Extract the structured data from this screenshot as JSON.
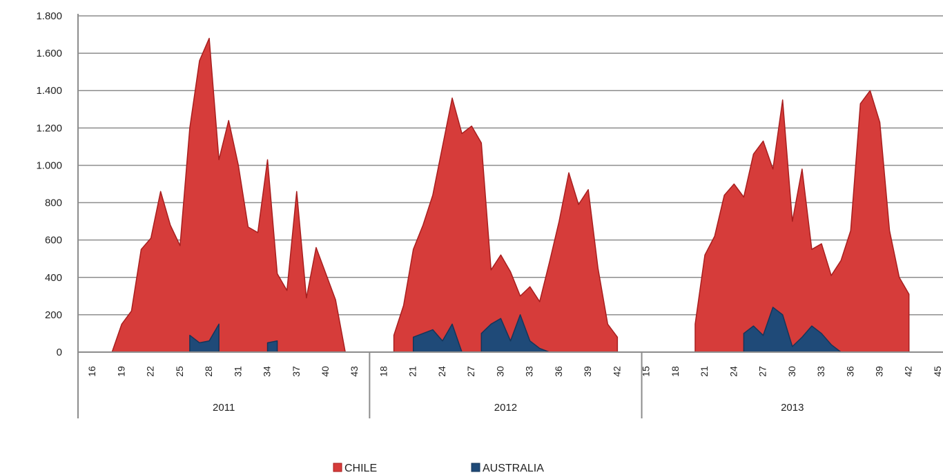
{
  "chart_data": {
    "type": "area",
    "categories": [
      null,
      "16",
      null,
      null,
      "19",
      null,
      null,
      "22",
      null,
      null,
      "25",
      null,
      null,
      "28",
      null,
      null,
      "31",
      null,
      null,
      "34",
      null,
      null,
      "37",
      null,
      null,
      "40",
      null,
      null,
      "43",
      null,
      null,
      "18",
      null,
      null,
      "21",
      null,
      null,
      "24",
      null,
      null,
      "27",
      null,
      null,
      "30",
      null,
      null,
      "33",
      null,
      null,
      "36",
      null,
      null,
      "39",
      null,
      null,
      "42",
      null,
      null,
      "15",
      null,
      null,
      "18",
      null,
      null,
      "21",
      null,
      null,
      "24",
      null,
      null,
      "27",
      null,
      null,
      "30",
      null,
      null,
      "33",
      null,
      null,
      "36",
      null,
      null,
      "39",
      null,
      null,
      "42",
      null,
      null,
      "45"
    ],
    "x_groups": [
      {
        "label": "2011",
        "size": 30
      },
      {
        "label": "2012",
        "size": 28
      },
      {
        "label": "2013",
        "size": 31
      }
    ],
    "series": [
      {
        "name": "CHILE",
        "color": "#d63c3a",
        "values": [
          null,
          null,
          null,
          0,
          150,
          220,
          550,
          610,
          860,
          680,
          570,
          1200,
          1560,
          1680,
          1030,
          1240,
          1000,
          670,
          640,
          1030,
          420,
          330,
          860,
          290,
          560,
          420,
          280,
          0,
          null,
          null,
          null,
          null,
          90,
          250,
          550,
          680,
          840,
          1100,
          1360,
          1170,
          1210,
          1120,
          440,
          520,
          430,
          300,
          350,
          270,
          480,
          700,
          960,
          790,
          870,
          450,
          150,
          80,
          null,
          null,
          null,
          null,
          null,
          null,
          null,
          150,
          520,
          620,
          840,
          900,
          830,
          1060,
          1130,
          980,
          1350,
          700,
          980,
          550,
          580,
          410,
          490,
          650,
          1330,
          1400,
          1230,
          650,
          400,
          310,
          null,
          null,
          null
        ]
      },
      {
        "name": "AUSTRALIA",
        "color": "#1f4a78",
        "values": [
          null,
          null,
          null,
          null,
          null,
          null,
          null,
          null,
          null,
          null,
          null,
          90,
          50,
          60,
          150,
          null,
          null,
          null,
          null,
          50,
          60,
          null,
          null,
          null,
          null,
          null,
          null,
          null,
          null,
          null,
          null,
          null,
          null,
          null,
          80,
          100,
          120,
          60,
          150,
          0,
          null,
          100,
          150,
          180,
          60,
          200,
          60,
          20,
          0,
          null,
          null,
          null,
          null,
          null,
          null,
          null,
          null,
          null,
          null,
          null,
          null,
          null,
          null,
          null,
          null,
          null,
          null,
          null,
          100,
          140,
          90,
          240,
          200,
          30,
          80,
          140,
          100,
          40,
          0,
          null,
          null,
          null,
          null,
          null,
          null,
          null,
          null,
          null,
          null
        ]
      }
    ],
    "ylim": [
      0,
      1800
    ],
    "yticks": [
      0,
      200,
      400,
      600,
      800,
      {
        "value": 1000,
        "label": "1.000"
      },
      {
        "value": 1200,
        "label": "1.200"
      },
      {
        "value": 1400,
        "label": "1.400"
      },
      {
        "value": 1600,
        "label": "1.600"
      },
      {
        "value": 1800,
        "label": "1.800"
      }
    ],
    "grid": true,
    "legend": "bottom"
  }
}
